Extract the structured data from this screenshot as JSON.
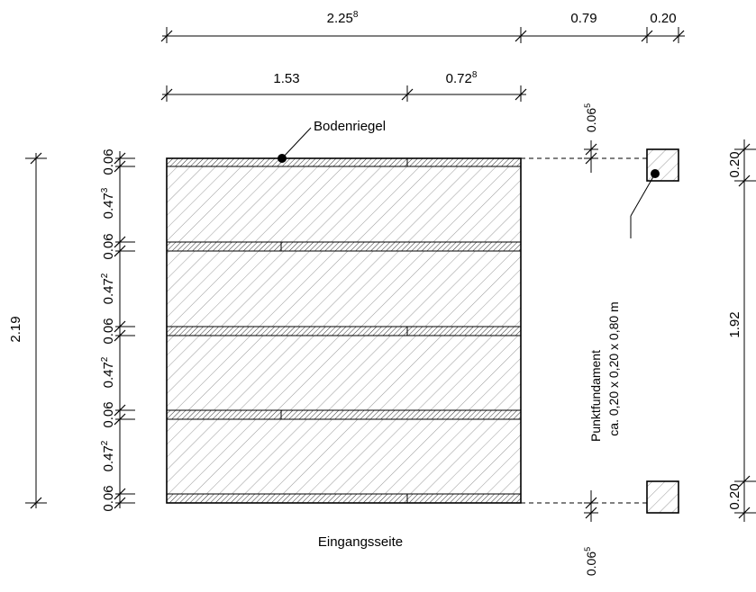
{
  "top_dimensions": {
    "overall": {
      "main": "2.25",
      "sup": "8"
    },
    "gap": {
      "main": "0.79",
      "sup": ""
    },
    "footing_width": {
      "main": "0.20",
      "sup": ""
    },
    "left_part": {
      "main": "1.53",
      "sup": ""
    },
    "right_part": {
      "main": "0.72",
      "sup": "8"
    }
  },
  "left_dimensions": {
    "overall": "2.19",
    "segments": [
      {
        "main": "0.06",
        "sup": ""
      },
      {
        "main": "0.47",
        "sup": "3"
      },
      {
        "main": "0.06",
        "sup": ""
      },
      {
        "main": "0.47",
        "sup": "2"
      },
      {
        "main": "0.06",
        "sup": ""
      },
      {
        "main": "0.47",
        "sup": "2"
      },
      {
        "main": "0.06",
        "sup": ""
      },
      {
        "main": "0.47",
        "sup": "2"
      },
      {
        "main": "0.06",
        "sup": ""
      }
    ]
  },
  "right_dimensions": {
    "offset_top": {
      "main": "0.06",
      "sup": "5"
    },
    "offset_bottom": {
      "main": "0.06",
      "sup": "5"
    },
    "footing_top": "0.20",
    "footing_span": "1.92",
    "footing_bottom": "0.20"
  },
  "labels": {
    "sill_beam": "Bodenriegel",
    "entrance": "Eingangsseite",
    "point_foundation_title": "Punktfundament",
    "point_foundation_size": "ca. 0,20 x 0,20 x 0,80 m"
  }
}
